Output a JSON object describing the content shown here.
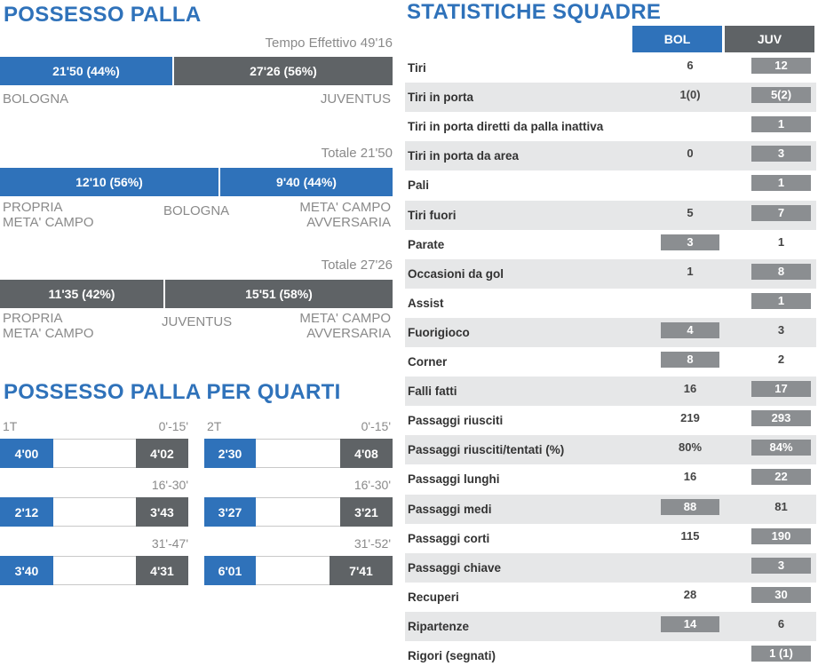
{
  "possession": {
    "title": "POSSESSO PALLA",
    "effective_time": "Tempo Effettivo 49'16",
    "bar_bologna": "21'50 (44%)",
    "bar_juventus": "27'26 (56%)",
    "team_bologna": "BOLOGNA",
    "team_juventus": "JUVENTUS",
    "bologna_total": "Totale 21'50",
    "bologna_own_half": "12'10 (56%)",
    "bologna_opp_half": "9'40 (44%)",
    "juventus_total": "Totale 27'26",
    "juventus_own_half": "11'35 (42%)",
    "juventus_opp_half": "15'51 (58%)",
    "own_half_label_1": "PROPRIA",
    "own_half_label_2": "META' CAMPO",
    "opp_half_label_1": "META' CAMPO",
    "opp_half_label_2": "AVVERSARIA",
    "colors": {
      "bologna": "#2f72ba",
      "juventus": "#5f6366"
    }
  },
  "quarters": {
    "title": "POSSESSO PALLA PER QUARTI",
    "first_half": {
      "label": "1T",
      "periods": [
        {
          "range": "0'-15'",
          "bologna": "4'00",
          "juventus": "4'02"
        },
        {
          "range": "16'-30'",
          "bologna": "2'12",
          "juventus": "3'43"
        },
        {
          "range": "31'-47'",
          "bologna": "3'40",
          "juventus": "4'31"
        }
      ]
    },
    "second_half": {
      "label": "2T",
      "periods": [
        {
          "range": "0'-15'",
          "bologna": "2'30",
          "juventus": "4'08"
        },
        {
          "range": "16'-30'",
          "bologna": "3'27",
          "juventus": "3'21"
        },
        {
          "range": "31'-52'",
          "bologna": "6'01",
          "juventus": "7'41"
        }
      ]
    }
  },
  "team_stats": {
    "title": "STATISTICHE SQUADRE",
    "header_bol": "BOL",
    "header_juv": "JUV",
    "rows": [
      {
        "label": "Tiri",
        "bol": "6",
        "juv": "12",
        "lead": "juv"
      },
      {
        "label": "Tiri in porta",
        "bol": "1(0)",
        "juv": "5(2)",
        "lead": "juv"
      },
      {
        "label": "Tiri in porta diretti da palla inattiva",
        "bol": "",
        "juv": "1",
        "lead": "juv"
      },
      {
        "label": "Tiri in porta da area",
        "bol": "0",
        "juv": "3",
        "lead": "juv"
      },
      {
        "label": "Pali",
        "bol": "",
        "juv": "1",
        "lead": "juv"
      },
      {
        "label": "Tiri fuori",
        "bol": "5",
        "juv": "7",
        "lead": "juv"
      },
      {
        "label": "Parate",
        "bol": "3",
        "juv": "1",
        "lead": "bol"
      },
      {
        "label": "Occasioni da gol",
        "bol": "1",
        "juv": "8",
        "lead": "juv"
      },
      {
        "label": "Assist",
        "bol": "",
        "juv": "1",
        "lead": "juv"
      },
      {
        "label": "Fuorigioco",
        "bol": "4",
        "juv": "3",
        "lead": "bol"
      },
      {
        "label": "Corner",
        "bol": "8",
        "juv": "2",
        "lead": "bol"
      },
      {
        "label": "Falli fatti",
        "bol": "16",
        "juv": "17",
        "lead": "juv"
      },
      {
        "label": "Passaggi riusciti",
        "bol": "219",
        "juv": "293",
        "lead": "juv"
      },
      {
        "label": "Passaggi riusciti/tentati (%)",
        "bol": "80%",
        "juv": "84%",
        "lead": "juv"
      },
      {
        "label": "Passaggi lunghi",
        "bol": "16",
        "juv": "22",
        "lead": "juv"
      },
      {
        "label": "Passaggi medi",
        "bol": "88",
        "juv": "81",
        "lead": "bol"
      },
      {
        "label": "Passaggi corti",
        "bol": "115",
        "juv": "190",
        "lead": "juv"
      },
      {
        "label": "Passaggi chiave",
        "bol": "",
        "juv": "3",
        "lead": "juv"
      },
      {
        "label": "Recuperi",
        "bol": "28",
        "juv": "30",
        "lead": "juv"
      },
      {
        "label": "Ripartenze",
        "bol": "14",
        "juv": "6",
        "lead": "bol"
      },
      {
        "label": "Rigori (segnati)",
        "bol": "",
        "juv": "1 (1)",
        "lead": "juv"
      }
    ]
  }
}
